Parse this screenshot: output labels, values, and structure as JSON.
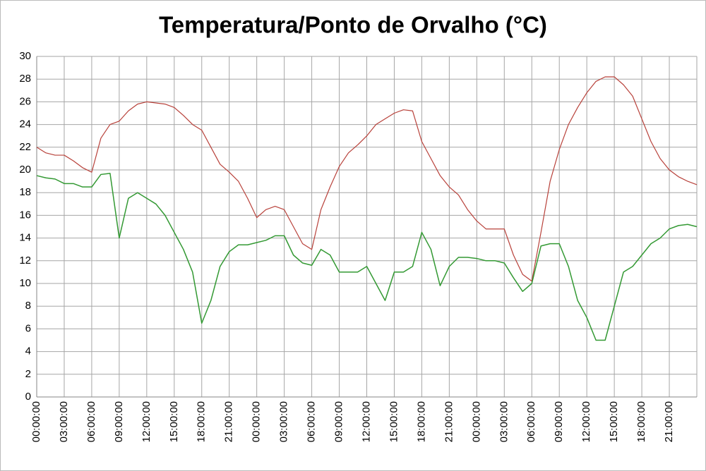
{
  "chart_data": {
    "type": "line",
    "title": "Temperatura/Ponto de Orvalho (°C)",
    "categories": [
      "00:00:00",
      null,
      null,
      "03:00:00",
      null,
      null,
      "06:00:00",
      null,
      null,
      "09:00:00",
      null,
      null,
      "12:00:00",
      null,
      null,
      "15:00:00",
      null,
      null,
      "18:00:00",
      null,
      null,
      "21:00:00",
      null,
      null,
      "00:00:00",
      null,
      null,
      "03:00:00",
      null,
      null,
      "06:00:00",
      null,
      null,
      "09:00:00",
      null,
      null,
      "12:00:00",
      null,
      null,
      "15:00:00",
      null,
      null,
      "18:00:00",
      null,
      null,
      "21:00:00",
      null,
      null,
      "00:00:00",
      null,
      null,
      "03:00:00",
      null,
      null,
      "06:00:00",
      null,
      null,
      "09:00:00",
      null,
      null,
      "12:00:00",
      null,
      null,
      "15:00:00",
      null,
      null,
      "18:00:00",
      null,
      null,
      "21:00:00",
      null,
      null,
      null
    ],
    "series": [
      {
        "color": "#b8413a",
        "values": [
          22,
          21.5,
          21.3,
          21.3,
          20.8,
          20.2,
          19.8,
          22.8,
          24,
          24.3,
          25.2,
          25.8,
          26,
          25.9,
          25.8,
          25.5,
          24.8,
          24,
          23.5,
          22,
          20.5,
          19.8,
          19,
          17.5,
          15.8,
          16.5,
          16.8,
          16.5,
          15,
          13.5,
          13,
          16.5,
          18.5,
          20.3,
          21.5,
          22.2,
          23,
          24,
          24.5,
          25,
          25.3,
          25.2,
          22.5,
          21,
          19.5,
          18.5,
          17.8,
          16.5,
          15.5,
          14.8,
          14.8,
          14.8,
          12.5,
          10.8,
          10.2,
          14.5,
          19,
          21.8,
          24,
          25.5,
          26.8,
          27.8,
          28.2,
          28.2,
          27.5,
          26.5,
          24.5,
          22.5,
          21,
          20,
          19.4,
          19,
          18.7
        ]
      },
      {
        "color": "#339933",
        "values": [
          19.5,
          19.3,
          19.2,
          18.8,
          18.8,
          18.5,
          18.5,
          19.6,
          19.7,
          14,
          17.5,
          18,
          17.5,
          17,
          16,
          14.5,
          13,
          11,
          6.5,
          8.5,
          11.5,
          12.8,
          13.4,
          13.4,
          13.6,
          13.8,
          14.2,
          14.2,
          12.5,
          11.8,
          11.6,
          13,
          12.5,
          11,
          11,
          11,
          11.5,
          10,
          8.5,
          11,
          11,
          11.5,
          14.5,
          13,
          9.8,
          11.5,
          12.3,
          12.3,
          12.2,
          12,
          12,
          11.8,
          10.5,
          9.3,
          10,
          13.3,
          13.5,
          13.5,
          11.5,
          8.5,
          7,
          5,
          5,
          8,
          11,
          11.5,
          12.5,
          13.5,
          14,
          14.8,
          15.1,
          15.2,
          15
        ]
      }
    ],
    "ylim": [
      0,
      30
    ],
    "yticks": [
      0,
      2,
      4,
      6,
      8,
      10,
      12,
      14,
      16,
      18,
      20,
      22,
      24,
      26,
      28,
      30
    ],
    "grid": true
  }
}
